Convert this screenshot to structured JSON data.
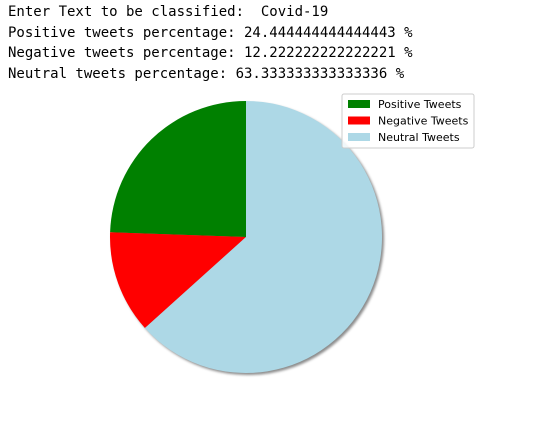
{
  "output": {
    "input_prompt": "Enter Text to be classified:  Covid-19",
    "positive_line": "Positive tweets percentage: 24.444444444444443 %",
    "negative_line": "Negative tweets percentage: 12.222222222222221 %",
    "neutral_line": "Neutral tweets percentage: 63.333333333333336 %"
  },
  "chart_data": {
    "type": "pie",
    "title": "",
    "start_angle_deg": 90,
    "direction": "counterclockwise",
    "shadow": true,
    "legend_position": "upper-right",
    "slices": [
      {
        "label": "Positive Tweets",
        "value": 24.444444444444443,
        "color": "#008000"
      },
      {
        "label": "Negative Tweets",
        "value": 12.222222222222221,
        "color": "#ff0000"
      },
      {
        "label": "Neutral Tweets",
        "value": 63.333333333333336,
        "color": "#add8e6"
      }
    ]
  }
}
